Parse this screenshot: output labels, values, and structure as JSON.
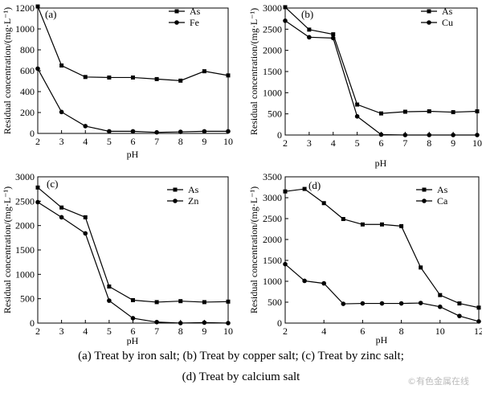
{
  "figure": {
    "panels": [
      {
        "panel_label": "(a)",
        "ylabel": "Residual concentration/(mg·L⁻¹)",
        "xlabel": "pH",
        "xlim": [
          2,
          10
        ],
        "xticks": [
          2,
          3,
          4,
          5,
          6,
          7,
          8,
          9,
          10
        ],
        "ylim": [
          0,
          1200
        ],
        "yticks": [
          0,
          200,
          400,
          600,
          800,
          1000,
          1200
        ],
        "legend": "top-right"
      },
      {
        "panel_label": "(b)",
        "ylabel": "Residual concentration/(mg·L⁻¹)",
        "xlabel": "pH",
        "xlim": [
          2,
          10
        ],
        "xticks": [
          2,
          3,
          4,
          5,
          6,
          7,
          8,
          9,
          10
        ],
        "ylim": [
          0,
          3000
        ],
        "yticks": [
          0,
          500,
          1000,
          1500,
          2000,
          2500,
          3000
        ],
        "legend": "top-right"
      },
      {
        "panel_label": "(c)",
        "ylabel": "Residual concentration/(mg·L⁻¹)",
        "xlabel": "pH",
        "xlim": [
          2,
          10
        ],
        "xticks": [
          2,
          3,
          4,
          5,
          6,
          7,
          8,
          9,
          10
        ],
        "ylim": [
          0,
          3000
        ],
        "yticks": [
          0,
          500,
          1000,
          1500,
          2000,
          2500,
          3000
        ],
        "legend": "top-right"
      },
      {
        "panel_label": "(d)",
        "ylabel": "Residual concentration/(mg·L⁻¹)",
        "xlabel": "pH",
        "xlim": [
          2,
          12
        ],
        "xticks": [
          2,
          4,
          6,
          8,
          10,
          12
        ],
        "ylim": [
          0,
          3500
        ],
        "yticks": [
          0,
          500,
          1000,
          1500,
          2000,
          2500,
          3000,
          3500
        ],
        "legend": "top-right"
      }
    ]
  },
  "caption": {
    "line1": "(a) Treat by iron salt; (b) Treat by copper salt; (c) Treat by zinc salt;",
    "line2": "(d) Treat by calcium salt"
  },
  "watermark": "©有色金属在线",
  "chart_data": [
    {
      "type": "line",
      "x": [
        2,
        3,
        4,
        5,
        6,
        7,
        8,
        9,
        10
      ],
      "series": [
        {
          "name": "As",
          "marker": "square",
          "values": [
            1215,
            650,
            540,
            535,
            535,
            520,
            505,
            595,
            555
          ]
        },
        {
          "name": "Fe",
          "marker": "circle",
          "values": [
            620,
            205,
            70,
            20,
            20,
            10,
            15,
            20,
            20
          ]
        }
      ],
      "xlabel": "pH",
      "ylabel": "Residual concentration/(mg·L⁻¹)",
      "xlim": [
        2,
        10
      ],
      "ylim": [
        0,
        1200
      ],
      "grid": false,
      "legend": "top-right"
    },
    {
      "type": "line",
      "x": [
        2,
        3,
        4,
        5,
        6,
        7,
        8,
        9,
        10
      ],
      "series": [
        {
          "name": "As",
          "marker": "square",
          "values": [
            3020,
            2490,
            2380,
            720,
            510,
            550,
            560,
            540,
            560
          ]
        },
        {
          "name": "Cu",
          "marker": "circle",
          "values": [
            2700,
            2310,
            2290,
            440,
            10,
            0,
            0,
            0,
            0
          ]
        }
      ],
      "xlabel": "pH",
      "ylabel": "Residual concentration/(mg·L⁻¹)",
      "xlim": [
        2,
        10
      ],
      "ylim": [
        0,
        3000
      ],
      "grid": false,
      "legend": "top-right"
    },
    {
      "type": "line",
      "x": [
        2,
        3,
        4,
        5,
        6,
        7,
        8,
        9,
        10
      ],
      "series": [
        {
          "name": "As",
          "marker": "square",
          "values": [
            2780,
            2370,
            2170,
            750,
            470,
            430,
            450,
            430,
            440
          ]
        },
        {
          "name": "Zn",
          "marker": "circle",
          "values": [
            2480,
            2170,
            1840,
            460,
            100,
            20,
            0,
            10,
            0
          ]
        }
      ],
      "xlabel": "pH",
      "ylabel": "Residual concentration/(mg·L⁻¹)",
      "xlim": [
        2,
        10
      ],
      "ylim": [
        0,
        3000
      ],
      "grid": false,
      "legend": "top-right"
    },
    {
      "type": "line",
      "x": [
        2,
        3,
        4,
        5,
        6,
        7,
        8,
        9,
        10,
        11,
        12
      ],
      "series": [
        {
          "name": "As",
          "marker": "square",
          "values": [
            3150,
            3210,
            2870,
            2490,
            2360,
            2360,
            2320,
            1330,
            670,
            470,
            370
          ]
        },
        {
          "name": "Ca",
          "marker": "circle",
          "values": [
            1410,
            1010,
            950,
            460,
            470,
            470,
            470,
            480,
            390,
            170,
            40
          ]
        }
      ],
      "xlabel": "pH",
      "ylabel": "Residual concentration/(mg·L⁻¹)",
      "xlim": [
        2,
        12
      ],
      "ylim": [
        0,
        3500
      ],
      "grid": false,
      "legend": "top-right"
    }
  ]
}
